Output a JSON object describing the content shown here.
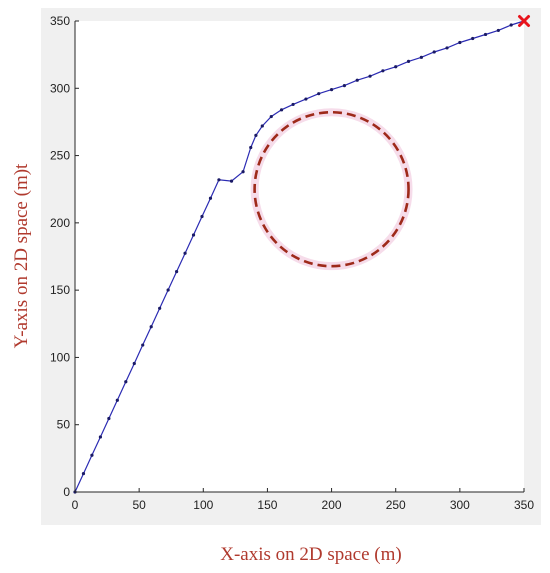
{
  "chart_data": {
    "type": "line",
    "xlabel": "X-axis on 2D space (m)",
    "ylabel": "Y-axis on 2D space (m)t",
    "xlim": [
      0,
      350
    ],
    "ylim": [
      0,
      350
    ],
    "xticks": [
      0,
      50,
      100,
      150,
      200,
      250,
      300,
      350
    ],
    "yticks": [
      0,
      50,
      100,
      150,
      200,
      250,
      300,
      350
    ],
    "grid": false,
    "series": [
      {
        "color": "#2b2bb3",
        "marker": "dot",
        "x": [
          0,
          6.6,
          13.2,
          19.8,
          26.4,
          33.0,
          39.6,
          46.2,
          52.8,
          59.4,
          66.0,
          72.6,
          79.2,
          85.8,
          92.4,
          99.0,
          105.6,
          112.2,
          122,
          131,
          137,
          141,
          146,
          153,
          161,
          170,
          180,
          190,
          200,
          210,
          220,
          230,
          240,
          250,
          260,
          270,
          280,
          290,
          300,
          310,
          320,
          330,
          340,
          350
        ],
        "y": [
          0,
          13.7,
          27.3,
          40.9,
          54.6,
          68.2,
          81.9,
          95.5,
          109.2,
          122.8,
          136.5,
          150.1,
          163.8,
          177.4,
          191.0,
          204.7,
          218.3,
          232.0,
          231,
          238,
          256,
          265,
          272,
          279,
          284,
          288,
          292,
          296,
          299,
          302,
          306,
          309,
          313,
          316,
          320,
          323,
          327,
          330,
          334,
          337,
          340,
          343,
          347,
          350
        ]
      }
    ],
    "obstacle": {
      "shape": "circle",
      "cx": 200,
      "cy": 225,
      "r": 60,
      "style": "dashed",
      "color": "#9e2a1a",
      "glow": "#f6dcea"
    },
    "goal": {
      "x": 350,
      "y": 350,
      "marker": "x",
      "color": "#e8141c"
    },
    "colors": {
      "plot_bg": "#ffffff",
      "frame_bg": "#f0f0f0",
      "axis": "#262626"
    }
  }
}
